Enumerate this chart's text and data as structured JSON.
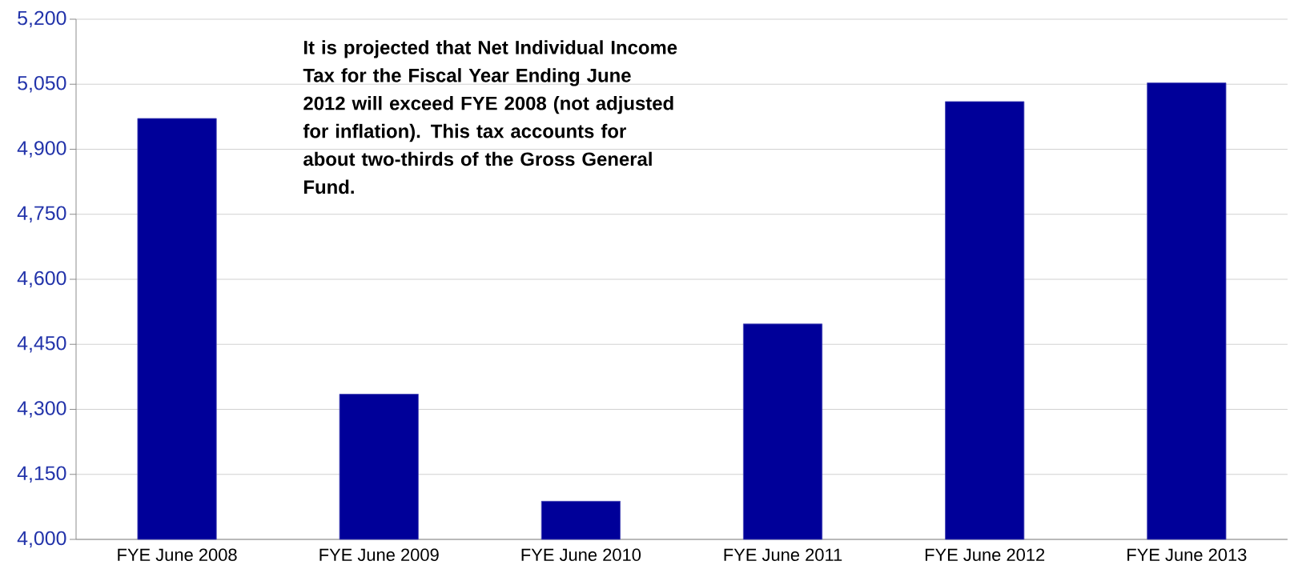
{
  "chart_data": {
    "type": "bar",
    "categories": [
      "FYE June 2008",
      "FYE June 2009",
      "FYE June 2010",
      "FYE June 2011",
      "FYE June 2012",
      "FYE June 2013"
    ],
    "values": [
      4971,
      4335,
      4088,
      4497,
      5010,
      5053
    ],
    "color": "#000099",
    "ylim": [
      4000,
      5200
    ],
    "yticks": [
      {
        "value": 4000,
        "label": "4,000"
      },
      {
        "value": 4150,
        "label": "4,150"
      },
      {
        "value": 4300,
        "label": "4,300"
      },
      {
        "value": 4450,
        "label": "4,450"
      },
      {
        "value": 4600,
        "label": "4,600"
      },
      {
        "value": 4750,
        "label": "4,750"
      },
      {
        "value": 4900,
        "label": "4,900"
      },
      {
        "value": 5050,
        "label": "5,050"
      },
      {
        "value": 5200,
        "label": "5,200"
      }
    ],
    "grid": "y",
    "annotations": [
      "It is projected that Net Individual Income Tax for the Fiscal Year Ending June 2012 will exceed FYE 2008 (not adjusted for inflation). This tax accounts for about two-thirds of the Gross General Fund."
    ]
  }
}
